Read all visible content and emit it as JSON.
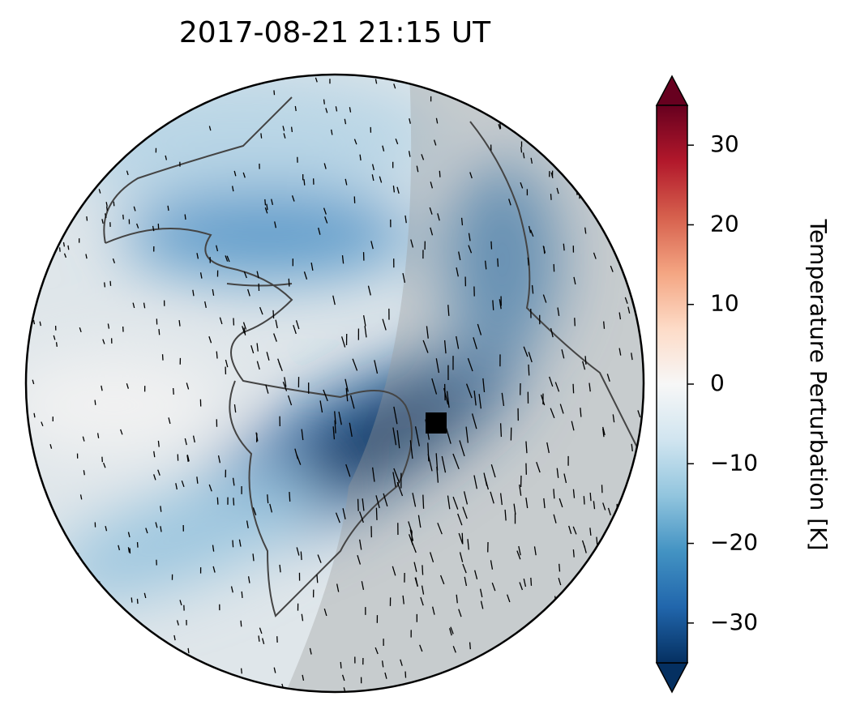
{
  "chart_data": {
    "type": "map",
    "title": "2017-08-21  21:15 UT",
    "colorbar": {
      "label": "Temperature Perturbation [K]",
      "lim": [
        -35,
        35
      ],
      "ticks": [
        {
          "value": -30,
          "label": "−30"
        },
        {
          "value": -20,
          "label": "−20"
        },
        {
          "value": -10,
          "label": "−10"
        },
        0,
        10,
        20,
        30
      ],
      "colors": [
        "#053061",
        "#2166ac",
        "#4393c3",
        "#92c5de",
        "#d1e5f0",
        "#f7f7f7",
        "#fddbc7",
        "#f4a582",
        "#d6604d",
        "#b2182b",
        "#67001f"
      ]
    }
  }
}
